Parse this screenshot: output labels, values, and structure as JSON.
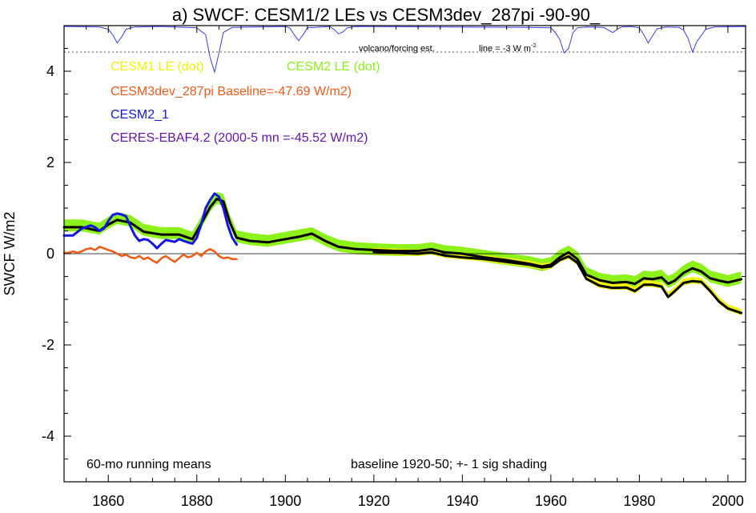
{
  "chart_data": {
    "type": "line",
    "title": "a) SWCF: CESM1/2 LEs vs CESM3dev_287pi -90-90_",
    "ylabel": "SWCF W/m2",
    "xlabel": "",
    "xlim": [
      1850,
      2004
    ],
    "ylim": [
      -5,
      5
    ],
    "xticks": [
      1860,
      1880,
      1900,
      1920,
      1940,
      1960,
      1980,
      2000
    ],
    "xtick_labels": [
      "1860",
      "1880",
      "1900",
      "1920",
      "1940",
      "1960",
      "1980",
      "2000"
    ],
    "yticks": [
      4,
      2,
      0,
      -2,
      -4
    ],
    "ytick_labels": [
      "4",
      "2",
      "0",
      "-2",
      "-4"
    ],
    "legend": {
      "cesm1": "CESM1 LE (dot)",
      "cesm2": "CESM2 LE (dot)",
      "cesm3": "CESM3dev_287pi Baseline=-47.69 W/m2)",
      "cesm2_1": "CESM2_1",
      "ceres": "CERES-EBAF4.2 (2000-5 mn =-45.52 W/m2)"
    },
    "annotations": {
      "volcano": "volcano/forcing est.",
      "line_note": "line = -3 W m",
      "line_note_sup": "-2",
      "bottom_left": "60-mo running means",
      "bottom_right": "baseline 1920-50; +- 1 sig shading"
    },
    "colors": {
      "cesm1": "#f2f20a",
      "cesm2": "#8cf21a",
      "cesm3": "#f25a14",
      "cesm2_1": "#1414e6",
      "ceres": "#6614b4",
      "volcano": "#3c3cf0",
      "ensemble_mean": "#000000"
    },
    "volcano_baseline": 5.0,
    "volcano_reference_line": 4.42,
    "series": [
      {
        "name": "CESM2 LE (dot)",
        "role": "shading",
        "sigma": 0.13,
        "x": [
          1850,
          1854,
          1858,
          1860,
          1862,
          1865,
          1868,
          1872,
          1876,
          1879,
          1881,
          1883,
          1884.5,
          1886,
          1887.5,
          1889,
          1892,
          1896,
          1900,
          1903,
          1906,
          1909,
          1912,
          1916,
          1920,
          1925,
          1930,
          1933,
          1936,
          1940,
          1945,
          1950,
          1955,
          1958,
          1960,
          1962,
          1964,
          1966,
          1968,
          1971,
          1974,
          1977,
          1979,
          1981,
          1983,
          1985,
          1986.5,
          1988,
          1990,
          1992,
          1994,
          1996,
          1998,
          2000,
          2003
        ],
        "y": [
          0.62,
          0.62,
          0.55,
          0.68,
          0.78,
          0.72,
          0.52,
          0.45,
          0.45,
          0.35,
          0.68,
          1.05,
          1.22,
          1.18,
          0.72,
          0.38,
          0.32,
          0.28,
          0.35,
          0.4,
          0.45,
          0.3,
          0.18,
          0.12,
          0.1,
          0.08,
          0.08,
          0.12,
          0.06,
          0.02,
          -0.05,
          -0.12,
          -0.18,
          -0.25,
          -0.2,
          -0.05,
          0.05,
          -0.08,
          -0.42,
          -0.55,
          -0.6,
          -0.58,
          -0.62,
          -0.5,
          -0.52,
          -0.48,
          -0.62,
          -0.55,
          -0.38,
          -0.28,
          -0.35,
          -0.5,
          -0.55,
          -0.6,
          -0.52
        ]
      },
      {
        "name": "CESM1 LE (dot)",
        "role": "shading",
        "sigma": 0.07,
        "x": [
          1920,
          1925,
          1930,
          1933,
          1936,
          1940,
          1945,
          1950,
          1955,
          1958,
          1960,
          1962,
          1964,
          1966,
          1968,
          1971,
          1974,
          1977,
          1979,
          1981,
          1983,
          1985,
          1986.5,
          1988,
          1990,
          1992,
          1994,
          1996,
          1998,
          2000,
          2003
        ],
        "y": [
          0.06,
          0.04,
          0.02,
          0.05,
          -0.02,
          -0.06,
          -0.1,
          -0.16,
          -0.22,
          -0.28,
          -0.26,
          -0.12,
          -0.04,
          -0.18,
          -0.52,
          -0.68,
          -0.72,
          -0.72,
          -0.8,
          -0.65,
          -0.66,
          -0.7,
          -0.92,
          -0.8,
          -0.62,
          -0.58,
          -0.6,
          -0.8,
          -1.02,
          -1.18,
          -1.28
        ]
      },
      {
        "name": "CESM2 LE ensemble mean",
        "role": "mean",
        "x": [
          1850,
          1854,
          1858,
          1860,
          1862,
          1865,
          1868,
          1872,
          1876,
          1879,
          1881,
          1883,
          1884.5,
          1886,
          1887.5,
          1889,
          1892,
          1896,
          1900,
          1903,
          1906,
          1909,
          1912,
          1916,
          1920,
          1925,
          1930,
          1933,
          1936,
          1940,
          1945,
          1950,
          1955,
          1958,
          1960,
          1962,
          1964,
          1966,
          1968,
          1971,
          1974,
          1977,
          1979,
          1981,
          1983,
          1985,
          1986.5,
          1988,
          1990,
          1992,
          1994,
          1996,
          1998,
          2000,
          2003
        ],
        "y": [
          0.58,
          0.58,
          0.5,
          0.64,
          0.74,
          0.68,
          0.48,
          0.42,
          0.42,
          0.32,
          0.66,
          1.02,
          1.2,
          1.15,
          0.68,
          0.35,
          0.28,
          0.25,
          0.32,
          0.37,
          0.44,
          0.28,
          0.15,
          0.1,
          0.08,
          0.06,
          0.06,
          0.1,
          0.03,
          0.0,
          -0.08,
          -0.14,
          -0.22,
          -0.28,
          -0.24,
          -0.08,
          0.03,
          -0.12,
          -0.46,
          -0.58,
          -0.64,
          -0.62,
          -0.66,
          -0.54,
          -0.56,
          -0.52,
          -0.66,
          -0.59,
          -0.42,
          -0.32,
          -0.39,
          -0.54,
          -0.59,
          -0.63,
          -0.56
        ]
      },
      {
        "name": "CESM1 LE ensemble mean",
        "role": "mean",
        "x": [
          1920,
          1925,
          1930,
          1933,
          1936,
          1940,
          1945,
          1950,
          1955,
          1958,
          1960,
          1962,
          1964,
          1966,
          1968,
          1971,
          1974,
          1977,
          1979,
          1981,
          1983,
          1985,
          1986.5,
          1988,
          1990,
          1992,
          1994,
          1996,
          1998,
          2000,
          2003
        ],
        "y": [
          0.04,
          0.02,
          0.0,
          0.03,
          -0.04,
          -0.08,
          -0.12,
          -0.18,
          -0.24,
          -0.3,
          -0.28,
          -0.14,
          -0.06,
          -0.2,
          -0.55,
          -0.7,
          -0.75,
          -0.74,
          -0.82,
          -0.68,
          -0.68,
          -0.72,
          -0.95,
          -0.82,
          -0.64,
          -0.6,
          -0.62,
          -0.82,
          -1.05,
          -1.2,
          -1.3
        ]
      },
      {
        "name": "CESM3dev_287pi",
        "role": "line",
        "x": [
          1850,
          1851,
          1852,
          1853,
          1854,
          1855,
          1856,
          1857,
          1858,
          1859,
          1860,
          1861,
          1862,
          1863,
          1864,
          1865,
          1866,
          1867,
          1868,
          1869,
          1870,
          1871,
          1872,
          1873,
          1874,
          1875,
          1876,
          1877,
          1878,
          1879,
          1880,
          1881,
          1882,
          1883,
          1884,
          1885,
          1886,
          1887,
          1888,
          1889
        ],
        "y": [
          0.02,
          0.02,
          0.05,
          0.02,
          0.05,
          0.1,
          0.12,
          0.08,
          0.15,
          0.12,
          0.08,
          0.05,
          0.0,
          -0.05,
          -0.02,
          -0.08,
          -0.1,
          -0.05,
          -0.12,
          -0.08,
          -0.15,
          -0.2,
          -0.1,
          -0.05,
          -0.12,
          -0.18,
          -0.1,
          -0.02,
          -0.08,
          -0.05,
          0.02,
          -0.05,
          0.05,
          0.1,
          0.05,
          -0.05,
          -0.1,
          -0.08,
          -0.12,
          -0.12
        ]
      },
      {
        "name": "CESM2_1",
        "role": "line",
        "x": [
          1850,
          1852,
          1854,
          1856,
          1857,
          1858,
          1859,
          1860,
          1861,
          1862,
          1863,
          1864,
          1865,
          1866,
          1867,
          1868,
          1869,
          1870,
          1871,
          1872,
          1873,
          1874,
          1875,
          1876,
          1877,
          1878,
          1879,
          1880,
          1881,
          1882,
          1883,
          1884,
          1885,
          1886,
          1887,
          1888,
          1889
        ],
        "y": [
          0.4,
          0.4,
          0.55,
          0.62,
          0.58,
          0.5,
          0.55,
          0.72,
          0.85,
          0.88,
          0.86,
          0.82,
          0.6,
          0.4,
          0.28,
          0.32,
          0.3,
          0.22,
          0.12,
          0.22,
          0.3,
          0.28,
          0.26,
          0.32,
          0.28,
          0.25,
          0.22,
          0.35,
          0.65,
          1.0,
          1.18,
          1.32,
          1.25,
          1.0,
          0.62,
          0.35,
          0.2
        ]
      },
      {
        "name": "volcano/forcing est.",
        "role": "volcano",
        "x": [
          1850,
          1858,
          1860,
          1861,
          1862,
          1863,
          1864,
          1866,
          1872,
          1880,
          1882,
          1883,
          1884,
          1885,
          1886,
          1888,
          1900,
          1901,
          1902,
          1903,
          1904,
          1905,
          1910,
          1911,
          1912,
          1913,
          1914,
          1916,
          1955,
          1960,
          1961,
          1962,
          1963,
          1964,
          1965,
          1966,
          1968,
          1972,
          1973,
          1974,
          1975,
          1976,
          1978,
          1980,
          1981,
          1982,
          1983,
          1984,
          1986,
          1989,
          1990,
          1991,
          1992,
          1993,
          1995,
          1997,
          2004
        ],
        "y": [
          4.98,
          4.97,
          4.92,
          4.8,
          4.62,
          4.75,
          4.92,
          4.97,
          4.98,
          4.95,
          4.8,
          4.3,
          3.98,
          4.4,
          4.85,
          4.96,
          4.98,
          4.95,
          4.8,
          4.67,
          4.8,
          4.95,
          4.98,
          4.92,
          4.82,
          4.86,
          4.95,
          4.98,
          4.96,
          4.95,
          4.85,
          4.7,
          4.4,
          4.5,
          4.85,
          4.95,
          4.97,
          4.96,
          4.9,
          4.85,
          4.92,
          4.97,
          4.98,
          4.95,
          4.8,
          4.62,
          4.78,
          4.93,
          4.97,
          4.96,
          4.9,
          4.72,
          4.42,
          4.65,
          4.92,
          4.97,
          4.98
        ]
      }
    ]
  }
}
